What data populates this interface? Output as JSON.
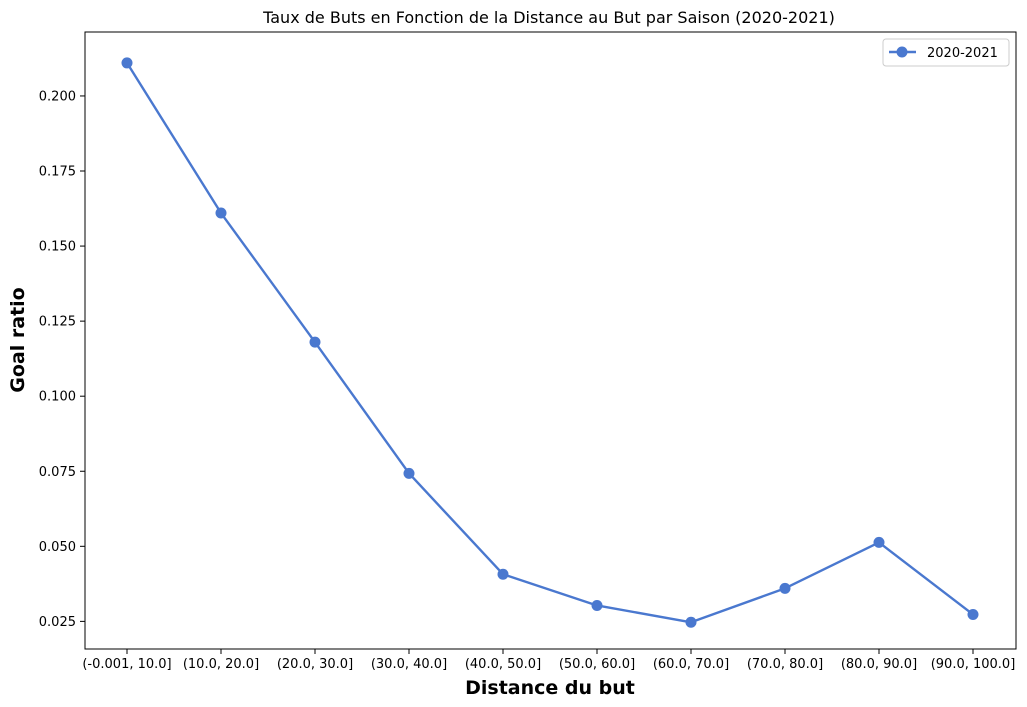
{
  "chart_data": {
    "type": "line",
    "title": "Taux de Buts en Fonction de la Distance au But par Saison (2020-2021)",
    "xlabel": "Distance du but",
    "ylabel": "Goal ratio",
    "categories": [
      "(-0.001, 10.0]",
      "(10.0, 20.0]",
      "(20.0, 30.0]",
      "(30.0, 40.0]",
      "(40.0, 50.0]",
      "(50.0, 60.0]",
      "(60.0, 70.0]",
      "(70.0, 80.0]",
      "(80.0, 90.0]",
      "(90.0, 100.0]"
    ],
    "series": [
      {
        "name": "2020-2021",
        "color": "#4a78cf",
        "values": [
          0.211,
          0.161,
          0.118,
          0.0743,
          0.0407,
          0.0303,
          0.0247,
          0.036,
          0.0513,
          0.0273
        ]
      }
    ],
    "ylim": [
      0.0158,
      0.2213
    ],
    "yticks": [
      "0.025",
      "0.050",
      "0.075",
      "0.100",
      "0.125",
      "0.150",
      "0.175",
      "0.200"
    ],
    "grid": false,
    "legend_position": "top-right"
  }
}
